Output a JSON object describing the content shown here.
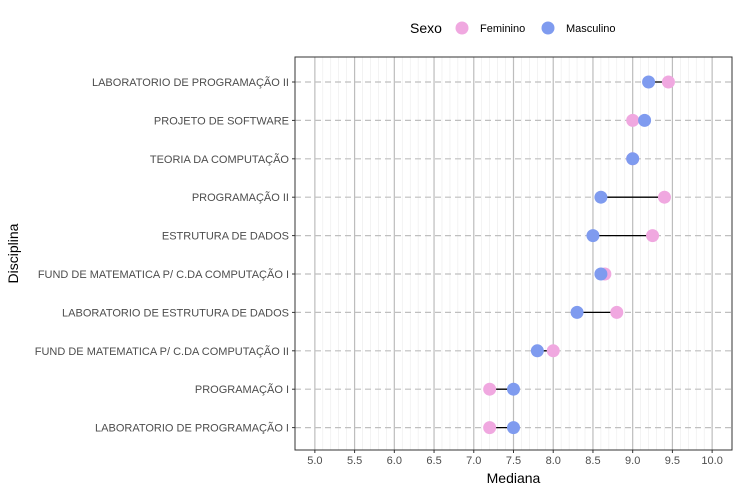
{
  "chart_data": {
    "type": "scatter",
    "subtype": "dumbbell",
    "xlabel": "Mediana",
    "ylabel": "Disciplina",
    "xlim": [
      4.75,
      10.25
    ],
    "xticks": [
      "5.0",
      "5.5",
      "6.0",
      "6.5",
      "7.0",
      "7.5",
      "8.0",
      "8.5",
      "9.0",
      "9.5",
      "10.0"
    ],
    "grid": true,
    "legend": {
      "title": "Sexo",
      "placement": "top",
      "entries": [
        {
          "name": "Feminino",
          "color": "#f0a8e0"
        },
        {
          "name": "Masculino",
          "color": "#7f9bef"
        }
      ]
    },
    "categories": [
      "LABORATORIO DE PROGRAMAÇÃO II",
      "PROJETO DE SOFTWARE",
      "TEORIA DA COMPUTAÇÃO",
      "PROGRAMAÇÃO II",
      "ESTRUTURA DE DADOS",
      "FUND DE MATEMATICA P/ C.DA COMPUTAÇÃO I",
      "LABORATORIO DE ESTRUTURA DE DADOS",
      "FUND DE MATEMATICA P/ C.DA COMPUTAÇÃO II",
      "PROGRAMAÇÃO I",
      "LABORATORIO DE PROGRAMAÇÃO I"
    ],
    "series": [
      {
        "name": "Feminino",
        "color": "#f0a8e0",
        "values": [
          9.45,
          9.0,
          9.0,
          9.4,
          9.25,
          8.65,
          8.8,
          8.0,
          7.2,
          7.2
        ]
      },
      {
        "name": "Masculino",
        "color": "#7f9bef",
        "values": [
          9.2,
          9.15,
          9.0,
          8.6,
          8.5,
          8.6,
          8.3,
          7.8,
          7.5,
          7.5
        ]
      }
    ]
  }
}
